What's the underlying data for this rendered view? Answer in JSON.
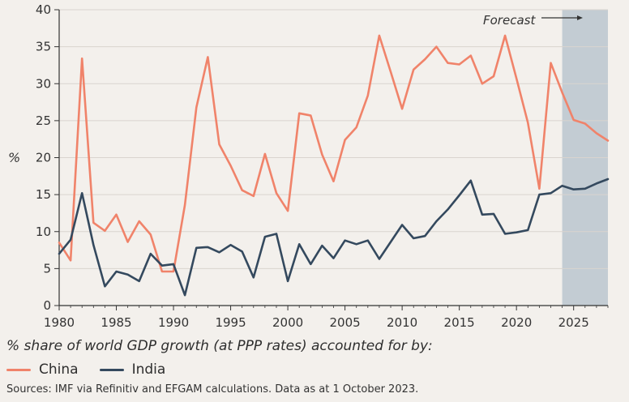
{
  "chart_data": {
    "type": "line",
    "ylabel": "%",
    "ylim": [
      0,
      40
    ],
    "xlim": [
      1980,
      2028
    ],
    "yticks": [
      0,
      5,
      10,
      15,
      20,
      25,
      30,
      35,
      40
    ],
    "xticks": [
      1980,
      1985,
      1990,
      1995,
      2000,
      2005,
      2010,
      2015,
      2020,
      2025
    ],
    "forecast": {
      "label": "Forecast",
      "start": 2024,
      "end": 2028
    },
    "x": [
      1980,
      1981,
      1982,
      1983,
      1984,
      1985,
      1986,
      1987,
      1988,
      1989,
      1990,
      1991,
      1992,
      1993,
      1994,
      1995,
      1996,
      1997,
      1998,
      1999,
      2000,
      2001,
      2002,
      2003,
      2004,
      2005,
      2006,
      2007,
      2008,
      2009,
      2010,
      2011,
      2012,
      2013,
      2014,
      2015,
      2016,
      2017,
      2018,
      2019,
      2020,
      2021,
      2022,
      2023,
      2024,
      2025,
      2026,
      2027,
      2028
    ],
    "series": [
      {
        "name": "China",
        "color": "#f0836a",
        "values": [
          8.5,
          6.1,
          33.4,
          11.2,
          10.1,
          12.3,
          8.6,
          11.4,
          9.6,
          4.6,
          4.6,
          13.6,
          26.8,
          33.6,
          21.8,
          18.9,
          15.6,
          14.8,
          20.5,
          15.2,
          12.8,
          26.0,
          25.7,
          20.4,
          16.8,
          22.4,
          24.1,
          28.4,
          36.5,
          31.6,
          26.6,
          31.9,
          33.3,
          35.0,
          32.8,
          32.6,
          33.8,
          30.0,
          31.0,
          36.5,
          30.7,
          24.7,
          15.8,
          32.8,
          28.8,
          25.1,
          24.6,
          23.3,
          22.3
        ]
      },
      {
        "name": "India",
        "color": "#34495e",
        "values": [
          7.0,
          8.9,
          15.2,
          8.2,
          2.6,
          4.6,
          4.2,
          3.3,
          7.0,
          5.4,
          5.6,
          1.4,
          7.8,
          7.9,
          7.2,
          8.2,
          7.3,
          3.8,
          9.3,
          9.7,
          3.3,
          8.3,
          5.6,
          8.1,
          6.4,
          8.8,
          8.3,
          8.8,
          6.3,
          8.6,
          10.9,
          9.1,
          9.4,
          11.4,
          13.0,
          14.9,
          16.9,
          12.3,
          12.4,
          9.7,
          9.9,
          10.2,
          15.0,
          15.2,
          16.2,
          15.7,
          15.8,
          16.5,
          17.1
        ]
      }
    ]
  },
  "subtitle": "% share of world GDP growth (at PPP rates) accounted for by:",
  "legend": [
    {
      "label": "China",
      "color": "#f0836a"
    },
    {
      "label": "India",
      "color": "#34495e"
    }
  ],
  "source": "Sources: IMF via Refinitiv and EFGAM calculations. Data as at 1 October 2023."
}
